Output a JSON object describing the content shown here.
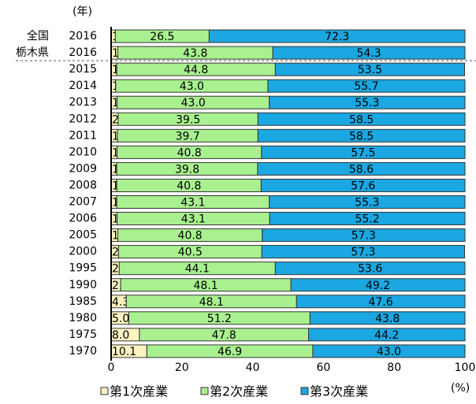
{
  "chart_data": {
    "type": "stacked-barh",
    "y_label": "(年)",
    "x_label": "(%)",
    "annotations": [
      {
        "text": "全国"
      },
      {
        "text": "栃木県"
      }
    ],
    "categories": [
      "2016",
      "2016",
      "2015",
      "2014",
      "2013",
      "2012",
      "2011",
      "2010",
      "2009",
      "2008",
      "2007",
      "2006",
      "2005",
      "2000",
      "1995",
      "1990",
      "1985",
      "1980",
      "1975",
      "1970"
    ],
    "series": [
      {
        "name": "第1次産業",
        "color": "#fbf3c2",
        "values": [
          1.2,
          1.9,
          1.6,
          1.3,
          1.7,
          2.0,
          1.8,
          1.7,
          1.6,
          1.6,
          1.6,
          1.7,
          1.9,
          2.1,
          2.3,
          2.7,
          4.3,
          5.0,
          8.0,
          10.1
        ],
        "value_labels": [
          "1.2",
          "1.9",
          "1.6",
          "1.3",
          "1.7",
          "2.0",
          "1.8",
          "1.7",
          "1.6",
          "1.6",
          "1.6",
          "1.7",
          "1.9",
          "2.1",
          "2.3",
          "2.7",
          "4.3",
          "5.0",
          "8.0",
          "10.1"
        ]
      },
      {
        "name": "第2次産業",
        "color": "#a9f190",
        "values": [
          26.5,
          43.8,
          44.8,
          43.0,
          43.0,
          39.5,
          39.7,
          40.8,
          39.8,
          40.8,
          43.1,
          43.1,
          40.8,
          40.5,
          44.1,
          48.1,
          48.1,
          51.2,
          47.8,
          46.9
        ],
        "value_labels": [
          "26.5",
          "43.8",
          "44.8",
          "43.0",
          "43.0",
          "39.5",
          "39.7",
          "40.8",
          "39.8",
          "40.8",
          "43.1",
          "43.1",
          "40.8",
          "40.5",
          "44.1",
          "48.1",
          "48.1",
          "51.2",
          "47.8",
          "46.9"
        ]
      },
      {
        "name": "第3次産業",
        "color": "#1ba7e1",
        "values": [
          72.3,
          54.3,
          53.5,
          55.7,
          55.3,
          58.5,
          58.5,
          57.5,
          58.6,
          57.6,
          55.3,
          55.2,
          57.3,
          57.3,
          53.6,
          49.2,
          47.6,
          43.8,
          44.2,
          43.0
        ],
        "value_labels": [
          "72.3",
          "54.3",
          "53.5",
          "55.7",
          "55.3",
          "58.5",
          "58.5",
          "57.5",
          "58.6",
          "57.6",
          "55.3",
          "55.2",
          "57.3",
          "57.3",
          "53.6",
          "49.2",
          "47.6",
          "43.8",
          "44.2",
          "43.0"
        ]
      }
    ],
    "xlim": [
      0,
      100
    ],
    "xticks": [
      0,
      20,
      40,
      60,
      80,
      100
    ],
    "legend": "bottom"
  }
}
